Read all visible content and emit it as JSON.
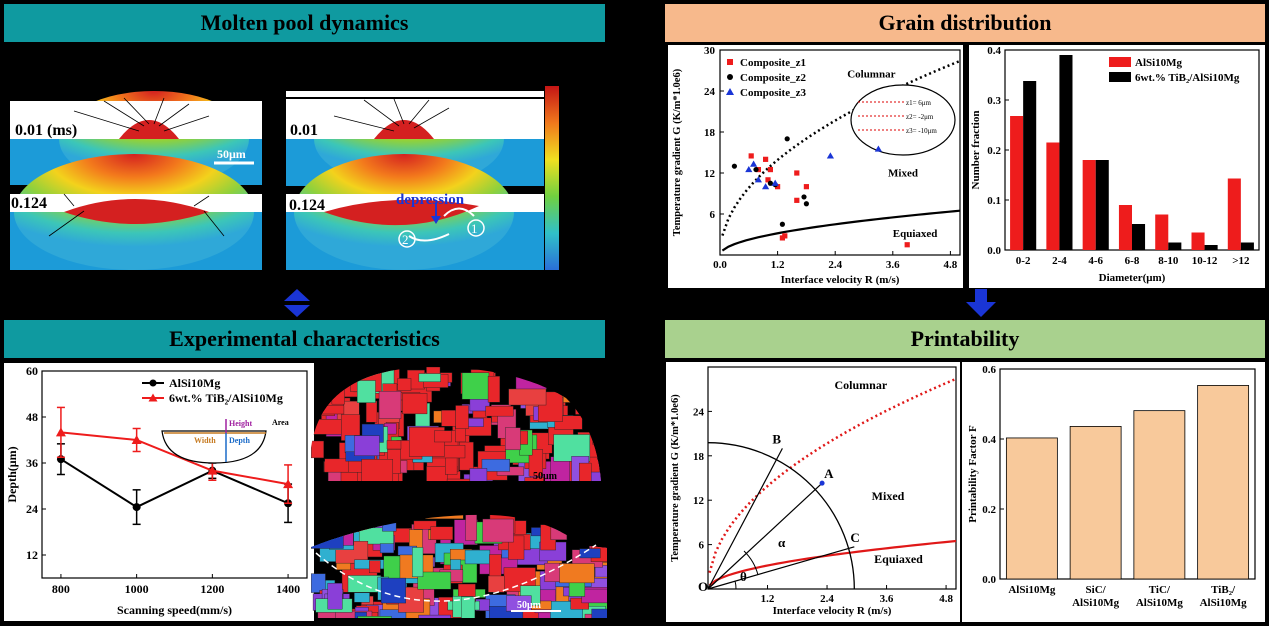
{
  "banners": {
    "molten": "Molten pool dynamics",
    "grain": "Grain distribution",
    "experimental": "Experimental characteristics",
    "printability": "Printability"
  },
  "molten_pool": {
    "frames": [
      {
        "label": "0.01 (ms)",
        "scale_bar": "50μm"
      },
      {
        "label": "0.01"
      },
      {
        "label": "0.124"
      },
      {
        "label": "0.124",
        "annotation": "depression",
        "markers": [
          "1",
          "2"
        ]
      }
    ]
  },
  "ebsd": {
    "scale_bar_top": "50μm",
    "scale_bar_bottom": "50μm"
  },
  "colors": {
    "red": "#ee1c1c",
    "black": "#000000",
    "blue": "#1a35d6",
    "bar": "#f8c99b",
    "teal": "#0f9aa0"
  },
  "chart_data": [
    {
      "id": "grain_scatter",
      "type": "scatter",
      "xlabel": "Interface velocity R (m/s)",
      "ylabel": "Temperature gradient G (K/m*1.0e6)",
      "xlim": [
        0,
        5
      ],
      "ylim": [
        0,
        30
      ],
      "x_ticks": [
        "0.0",
        "1.2",
        "2.4",
        "3.6",
        "4.8"
      ],
      "y_ticks": [
        "6",
        "12",
        "18",
        "24",
        "30"
      ],
      "region_labels": [
        "Columnar",
        "Mixed",
        "Equiaxed"
      ],
      "inset_labels": [
        "z1= 6μm",
        "z2= -2μm",
        "z3= -10μm"
      ],
      "series": [
        {
          "name": "Composite_z1",
          "color": "#ee1c1c",
          "marker": "square",
          "x": [
            0.65,
            0.8,
            0.95,
            1.0,
            1.05,
            1.2,
            1.3,
            1.35,
            1.6,
            1.6,
            1.8,
            3.9
          ],
          "y": [
            14.5,
            12.5,
            14,
            11,
            12.5,
            10,
            2.5,
            2.8,
            8,
            12,
            10,
            1.5
          ]
        },
        {
          "name": "Composite_z2",
          "color": "#000000",
          "marker": "circle",
          "x": [
            0.3,
            0.75,
            1.05,
            1.15,
            1.3,
            1.4,
            1.75,
            1.8
          ],
          "y": [
            13,
            12.5,
            10.5,
            10.3,
            4.5,
            17,
            8.5,
            7.5
          ]
        },
        {
          "name": "Composite_z3",
          "color": "#1a35d6",
          "marker": "triangle",
          "x": [
            0.6,
            0.7,
            0.8,
            0.95,
            1.15,
            2.3,
            3.3
          ],
          "y": [
            12.5,
            13.3,
            11,
            10,
            10.5,
            14.5,
            15.5
          ]
        }
      ]
    },
    {
      "id": "grain_bar",
      "type": "bar",
      "xlabel": "Diameter(μm)",
      "ylabel": "Number fraction",
      "ylim": [
        0,
        0.4
      ],
      "y_ticks": [
        "0.0",
        "0.1",
        "0.2",
        "0.3",
        "0.4"
      ],
      "categories": [
        "0-2",
        "2-4",
        "4-6",
        "6-8",
        "8-10",
        "10-12",
        ">12"
      ],
      "series": [
        {
          "name": "AlSi10Mg",
          "color": "#ee1c1c",
          "values": [
            0.268,
            0.215,
            0.18,
            0.09,
            0.071,
            0.035,
            0.143
          ]
        },
        {
          "name": "6wt.% TiB₂/AlSi10Mg",
          "color": "#000000",
          "values": [
            0.338,
            0.39,
            0.18,
            0.052,
            0.015,
            0.01,
            0.015
          ]
        }
      ]
    },
    {
      "id": "depth_line",
      "type": "line",
      "xlabel": "Scanning speed(mm/s)",
      "ylabel": "Depth(μm)",
      "xlim": [
        750,
        1450
      ],
      "ylim": [
        6,
        60
      ],
      "x_ticks": [
        "800",
        "1000",
        "1200",
        "1400"
      ],
      "y_ticks": [
        "12",
        "24",
        "36",
        "48",
        "60"
      ],
      "inset_labels": [
        "Height",
        "Area",
        "Width",
        "Depth"
      ],
      "x": [
        800,
        1000,
        1200,
        1400
      ],
      "series": [
        {
          "name": "AlSi10Mg",
          "color": "#000000",
          "marker": "circle",
          "values": [
            37,
            24.5,
            34,
            25.5
          ],
          "err": [
            4,
            4.5,
            2,
            5
          ]
        },
        {
          "name": "6wt.% TiB₂/AlSi10Mg",
          "color": "#ee1c1c",
          "marker": "triangle",
          "values": [
            44,
            42,
            34,
            30.5
          ],
          "err": [
            6.5,
            3,
            2.5,
            5
          ]
        }
      ]
    },
    {
      "id": "printability_scatter",
      "type": "line",
      "xlabel": "Interface velocity R (m/s)",
      "ylabel": "Temperature gradient G (K/m*1.0e6)",
      "xlim": [
        0,
        5
      ],
      "ylim": [
        0,
        30
      ],
      "x_ticks": [
        "1.2",
        "2.4",
        "3.6",
        "4.8"
      ],
      "y_ticks": [
        "6",
        "12",
        "18",
        "24"
      ],
      "region_labels": [
        "Columnar",
        "Mixed",
        "Equiaxed"
      ],
      "point_labels": [
        "O",
        "A",
        "B",
        "C",
        "α",
        "θ"
      ]
    },
    {
      "id": "printability_bar",
      "type": "bar",
      "ylabel": "Printability Factor F",
      "ylim": [
        0,
        0.6
      ],
      "y_ticks": [
        "0.0",
        "0.2",
        "0.4",
        "0.6"
      ],
      "categories": [
        "AlSi10Mg",
        "SiC/ AlSi10Mg",
        "TiC/ AlSi10Mg",
        "TiB₂/ AlSi10Mg"
      ],
      "values": [
        0.403,
        0.436,
        0.481,
        0.553
      ],
      "color": "#f8c99b"
    }
  ]
}
